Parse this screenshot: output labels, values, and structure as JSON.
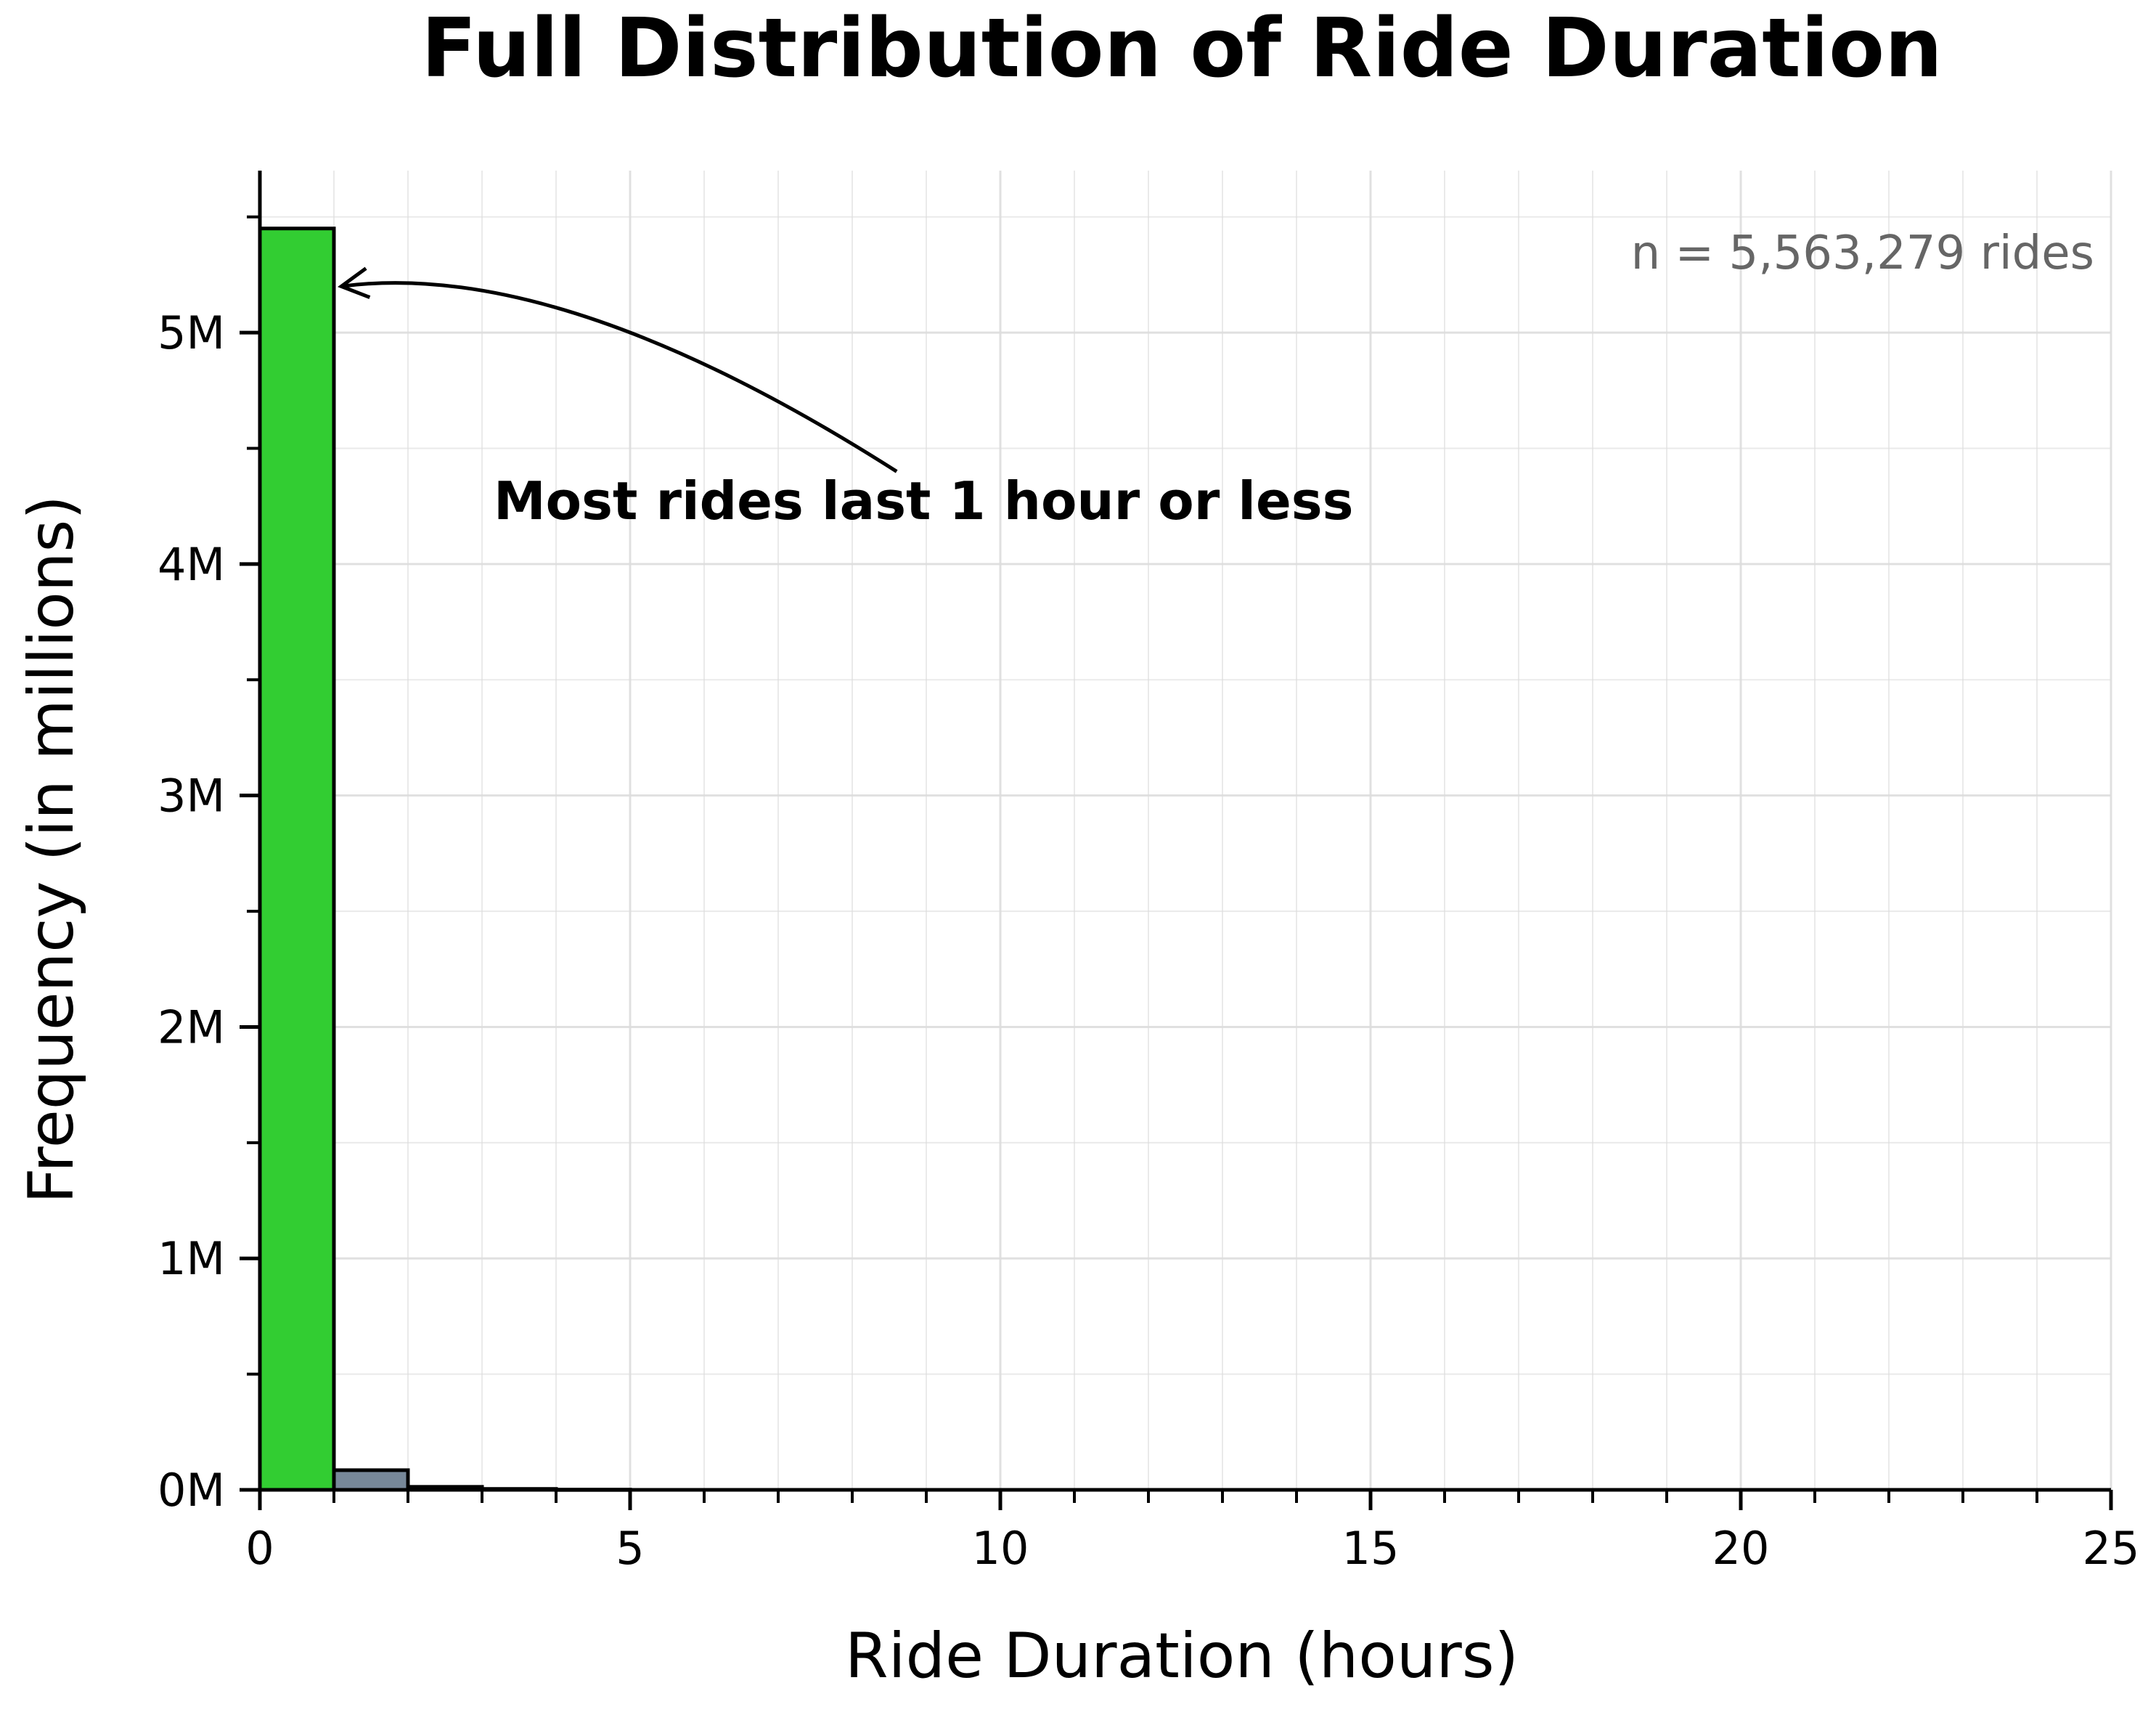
{
  "chart_data": {
    "type": "bar",
    "title": "Full Distribution of Ride Duration",
    "xlabel": "Ride Duration (hours)",
    "ylabel": "Frequency (in millions)",
    "xlim": [
      0,
      25
    ],
    "ylim": [
      0,
      5.7
    ],
    "x_ticks": [
      0,
      5,
      10,
      15,
      20,
      25
    ],
    "x_tick_labels": [
      "0",
      "5",
      "10",
      "15",
      "20",
      "25"
    ],
    "y_ticks": [
      0,
      1,
      2,
      3,
      4,
      5
    ],
    "y_tick_labels": [
      "0M",
      "1M",
      "2M",
      "3M",
      "4M",
      "5M"
    ],
    "grid": true,
    "bin_width": 1,
    "bins": [
      {
        "start": 0,
        "end": 1,
        "value": 5.45,
        "highlight": true
      },
      {
        "start": 1,
        "end": 2,
        "value": 0.085,
        "highlight": false
      },
      {
        "start": 2,
        "end": 3,
        "value": 0.013,
        "highlight": false
      },
      {
        "start": 3,
        "end": 4,
        "value": 0.004,
        "highlight": false
      },
      {
        "start": 4,
        "end": 5,
        "value": 0.001,
        "highlight": false
      }
    ],
    "colors": {
      "highlight": "#32cd32",
      "other": "#778899",
      "edge": "#000000",
      "grid": "#dddddd",
      "note": "#666666"
    },
    "note": "n = 5,563,279 rides",
    "annotation": {
      "text": "Most rides last 1 hour or less",
      "arrow_to": {
        "x": 1.1,
        "y": 5.2
      },
      "arrow_from": {
        "x": 8.6,
        "y": 4.4
      }
    }
  }
}
